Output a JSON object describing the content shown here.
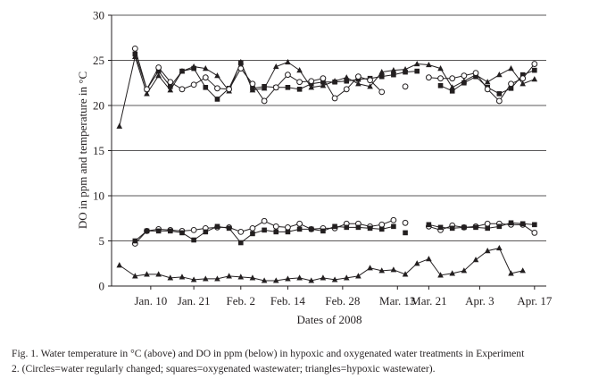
{
  "chart_data": {
    "type": "line",
    "xlabel": "Dates of 2008",
    "ylabel": "DO in ppm and temperature in °C",
    "ylim": [
      0,
      30
    ],
    "yticks": [
      0,
      5,
      10,
      15,
      20,
      25,
      30
    ],
    "xlim_day": [
      0,
      111
    ],
    "xticks": [
      {
        "label": "Jan. 10",
        "day": 10
      },
      {
        "label": "Jan. 21",
        "day": 21
      },
      {
        "label": "Feb. 2",
        "day": 33
      },
      {
        "label": "Feb. 14",
        "day": 45
      },
      {
        "label": "Feb. 28",
        "day": 59
      },
      {
        "label": "Mar. 13",
        "day": 73
      },
      {
        "label": "Mar. 21",
        "day": 81
      },
      {
        "label": "Apr. 3",
        "day": 94
      },
      {
        "label": "Apr. 17",
        "day": 108
      }
    ],
    "grid": "horizontal",
    "colors": {
      "line": "#231f20",
      "grid": "#231f20",
      "hollow_fill": "#ffffff"
    },
    "series": [
      {
        "group": "temperature",
        "marker": "triangle",
        "points": [
          [
            2,
            17.7
          ],
          [
            6,
            25.4
          ],
          [
            9,
            21.3
          ],
          [
            12,
            23.3
          ],
          [
            15,
            21.7
          ],
          [
            18,
            23.8
          ],
          [
            21,
            24.3
          ],
          [
            24,
            24.1
          ],
          [
            27,
            23.3
          ],
          [
            30,
            21.6
          ],
          [
            33,
            24.8
          ],
          [
            36,
            21.7
          ],
          [
            39,
            21.9
          ],
          [
            42,
            24.3
          ],
          [
            45,
            24.8
          ],
          [
            48,
            23.9
          ],
          [
            51,
            22.0
          ],
          [
            54,
            22.2
          ],
          [
            57,
            22.7
          ],
          [
            60,
            23.1
          ],
          [
            63,
            22.4
          ],
          [
            66,
            22.1
          ],
          [
            69,
            23.7
          ],
          [
            72,
            23.9
          ],
          [
            75,
            24.0
          ],
          [
            78,
            24.6
          ],
          [
            81,
            24.5
          ],
          [
            84,
            24.1
          ],
          [
            87,
            22.0
          ],
          [
            90,
            22.7
          ],
          [
            93,
            23.4
          ],
          [
            96,
            22.6
          ],
          [
            99,
            23.4
          ],
          [
            102,
            24.1
          ],
          [
            105,
            22.4
          ],
          [
            108,
            22.9
          ]
        ]
      },
      {
        "group": "temperature",
        "marker": "square",
        "points": [
          [
            6,
            25.7
          ],
          [
            9,
            21.8
          ],
          [
            12,
            23.8
          ],
          [
            15,
            22.1
          ],
          [
            18,
            23.8
          ],
          [
            21,
            24.1
          ],
          [
            24,
            22.0
          ],
          [
            27,
            20.7
          ],
          [
            30,
            21.9
          ],
          [
            33,
            24.7
          ],
          [
            36,
            21.9
          ],
          [
            39,
            22.1
          ],
          [
            42,
            22.0
          ],
          [
            45,
            22.0
          ],
          [
            48,
            21.8
          ],
          [
            51,
            22.4
          ],
          [
            54,
            22.6
          ],
          [
            57,
            22.6
          ],
          [
            60,
            22.7
          ],
          [
            63,
            22.9
          ],
          [
            66,
            23.0
          ],
          [
            69,
            23.2
          ],
          [
            72,
            23.4
          ],
          [
            75,
            23.7
          ],
          [
            78,
            23.8
          ]
        ]
      },
      {
        "group": "temperature",
        "marker": "square",
        "points": [
          [
            84,
            22.2
          ],
          [
            87,
            21.6
          ],
          [
            90,
            22.5
          ],
          [
            93,
            23.2
          ],
          [
            96,
            22.0
          ],
          [
            99,
            21.3
          ],
          [
            102,
            21.9
          ],
          [
            105,
            23.4
          ],
          [
            108,
            23.9
          ]
        ]
      },
      {
        "group": "temperature",
        "marker": "circle",
        "points": [
          [
            6,
            26.3
          ],
          [
            9,
            21.8
          ],
          [
            12,
            24.2
          ],
          [
            15,
            22.6
          ],
          [
            18,
            21.8
          ],
          [
            21,
            22.3
          ],
          [
            24,
            23.1
          ],
          [
            27,
            21.9
          ],
          [
            30,
            21.8
          ],
          [
            33,
            24.1
          ],
          [
            36,
            22.4
          ],
          [
            39,
            20.5
          ],
          [
            42,
            22.0
          ],
          [
            45,
            23.4
          ],
          [
            48,
            22.6
          ],
          [
            51,
            22.7
          ],
          [
            54,
            23.0
          ],
          [
            57,
            20.8
          ],
          [
            60,
            21.8
          ],
          [
            63,
            23.2
          ],
          [
            66,
            22.8
          ],
          [
            69,
            21.5
          ]
        ]
      },
      {
        "group": "temperature",
        "marker": "circle",
        "points": [
          [
            75,
            22.1
          ]
        ]
      },
      {
        "group": "temperature",
        "marker": "circle",
        "points": [
          [
            81,
            23.1
          ],
          [
            84,
            23.0
          ],
          [
            87,
            23.0
          ],
          [
            90,
            23.3
          ],
          [
            93,
            23.6
          ],
          [
            96,
            21.8
          ],
          [
            99,
            20.5
          ],
          [
            102,
            22.4
          ],
          [
            105,
            23.0
          ],
          [
            108,
            24.6
          ]
        ]
      },
      {
        "group": "DO",
        "marker": "circle",
        "points": [
          [
            6,
            4.7
          ],
          [
            9,
            6.1
          ],
          [
            12,
            6.3
          ],
          [
            15,
            6.2
          ],
          [
            18,
            6.1
          ],
          [
            21,
            6.2
          ],
          [
            24,
            6.4
          ],
          [
            27,
            6.5
          ],
          [
            30,
            6.5
          ],
          [
            33,
            6.0
          ],
          [
            36,
            6.4
          ],
          [
            39,
            7.2
          ],
          [
            42,
            6.6
          ],
          [
            45,
            6.5
          ],
          [
            48,
            6.9
          ],
          [
            51,
            6.3
          ],
          [
            54,
            6.4
          ],
          [
            57,
            6.4
          ],
          [
            60,
            6.9
          ],
          [
            63,
            6.9
          ],
          [
            66,
            6.6
          ],
          [
            69,
            6.8
          ],
          [
            72,
            7.3
          ]
        ]
      },
      {
        "group": "DO",
        "marker": "circle",
        "points": [
          [
            75,
            7.0
          ]
        ]
      },
      {
        "group": "DO",
        "marker": "circle",
        "points": [
          [
            81,
            6.6
          ],
          [
            84,
            6.2
          ],
          [
            87,
            6.7
          ],
          [
            90,
            6.5
          ],
          [
            93,
            6.6
          ],
          [
            96,
            6.9
          ],
          [
            99,
            6.9
          ],
          [
            102,
            6.8
          ],
          [
            105,
            6.8
          ],
          [
            108,
            5.9
          ]
        ]
      },
      {
        "group": "DO",
        "marker": "square",
        "points": [
          [
            6,
            5.0
          ],
          [
            9,
            6.1
          ],
          [
            12,
            6.1
          ],
          [
            15,
            6.1
          ],
          [
            18,
            5.9
          ],
          [
            21,
            5.1
          ],
          [
            24,
            6.0
          ],
          [
            27,
            6.6
          ],
          [
            30,
            6.4
          ],
          [
            33,
            4.8
          ],
          [
            36,
            5.8
          ],
          [
            39,
            6.2
          ],
          [
            42,
            6.0
          ],
          [
            45,
            6.0
          ],
          [
            48,
            6.3
          ],
          [
            51,
            6.3
          ],
          [
            54,
            6.1
          ],
          [
            57,
            6.6
          ],
          [
            60,
            6.5
          ],
          [
            63,
            6.5
          ],
          [
            66,
            6.4
          ],
          [
            69,
            6.3
          ],
          [
            72,
            6.6
          ]
        ]
      },
      {
        "group": "DO",
        "marker": "square",
        "points": [
          [
            75,
            5.9
          ]
        ]
      },
      {
        "group": "DO",
        "marker": "square",
        "points": [
          [
            81,
            6.8
          ],
          [
            84,
            6.5
          ],
          [
            87,
            6.4
          ],
          [
            90,
            6.5
          ],
          [
            93,
            6.5
          ],
          [
            96,
            6.4
          ],
          [
            99,
            6.6
          ],
          [
            102,
            7.0
          ],
          [
            105,
            6.9
          ],
          [
            108,
            6.8
          ]
        ]
      },
      {
        "group": "DO",
        "marker": "triangle",
        "points": [
          [
            2,
            2.3
          ],
          [
            6,
            1.1
          ],
          [
            9,
            1.3
          ],
          [
            12,
            1.3
          ],
          [
            15,
            0.9
          ],
          [
            18,
            1.0
          ],
          [
            21,
            0.7
          ],
          [
            24,
            0.8
          ],
          [
            27,
            0.8
          ],
          [
            30,
            1.1
          ],
          [
            33,
            1.0
          ],
          [
            36,
            0.9
          ],
          [
            39,
            0.6
          ],
          [
            42,
            0.6
          ],
          [
            45,
            0.8
          ],
          [
            48,
            0.9
          ],
          [
            51,
            0.6
          ],
          [
            54,
            0.9
          ],
          [
            57,
            0.7
          ],
          [
            60,
            0.9
          ],
          [
            63,
            1.1
          ],
          [
            66,
            2.0
          ],
          [
            69,
            1.7
          ],
          [
            72,
            1.8
          ],
          [
            75,
            1.3
          ],
          [
            78,
            2.5
          ],
          [
            81,
            3.0
          ],
          [
            84,
            1.2
          ],
          [
            87,
            1.4
          ],
          [
            90,
            1.7
          ],
          [
            93,
            2.9
          ],
          [
            96,
            3.9
          ],
          [
            99,
            4.2
          ],
          [
            102,
            1.4
          ],
          [
            105,
            1.7
          ]
        ]
      }
    ]
  },
  "caption": {
    "line1": "Fig. 1. Water temperature in °C (above) and DO in ppm (below) in hypoxic and oxygenated water treatments in Experiment",
    "line2": "2. (Circles=water regularly changed; squares=oxygenated wastewater; triangles=hypoxic wastewater)."
  }
}
